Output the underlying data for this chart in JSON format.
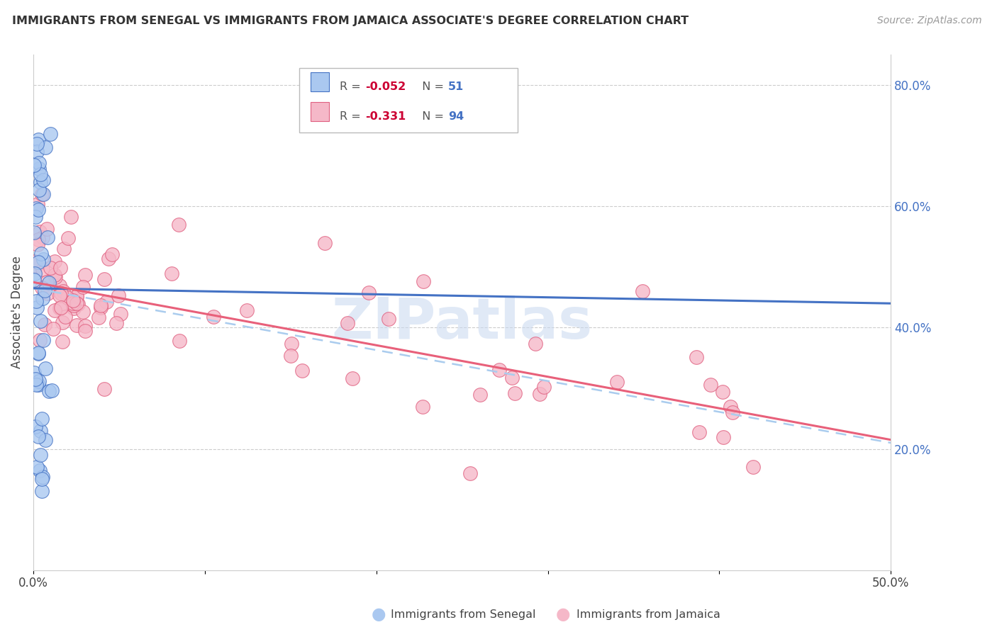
{
  "title": "IMMIGRANTS FROM SENEGAL VS IMMIGRANTS FROM JAMAICA ASSOCIATE'S DEGREE CORRELATION CHART",
  "source": "Source: ZipAtlas.com",
  "ylabel": "Associate's Degree",
  "right_ytick_labels": [
    "80.0%",
    "60.0%",
    "40.0%",
    "20.0%"
  ],
  "right_ytick_values": [
    0.8,
    0.6,
    0.4,
    0.2
  ],
  "xtick_positions": [
    0.0,
    0.1,
    0.2,
    0.3,
    0.4,
    0.5
  ],
  "xtick_labels": [
    "0.0%",
    "",
    "",
    "",
    "",
    "50.0%"
  ],
  "xlim": [
    0.0,
    0.5
  ],
  "ylim": [
    0.0,
    0.85
  ],
  "color_senegal_fill": "#aac8f0",
  "color_senegal_edge": "#4472c4",
  "color_jamaica_fill": "#f5b8c8",
  "color_jamaica_edge": "#e06080",
  "color_trendline_senegal": "#4472c4",
  "color_trendline_jamaica": "#e8607a",
  "color_trendline_dashed": "#aaccee",
  "color_grid": "#cccccc",
  "watermark_text": "ZIPatlas",
  "watermark_color": "#c8d8f0",
  "legend_items": [
    {
      "r": "-0.052",
      "n": "51",
      "fill": "#aac8f0",
      "edge": "#4472c4"
    },
    {
      "r": "-0.331",
      "n": "94",
      "fill": "#f5b8c8",
      "edge": "#e06080"
    }
  ],
  "bottom_legend": [
    {
      "label": "Immigrants from Senegal",
      "fill": "#aac8f0",
      "edge": "#4472c4"
    },
    {
      "label": "Immigrants from Jamaica",
      "fill": "#f5b8c8",
      "edge": "#e06080"
    }
  ],
  "sen_trend_x0": 0.0,
  "sen_trend_y0": 0.465,
  "sen_trend_x1": 0.5,
  "sen_trend_y1": 0.44,
  "jam_trend_x0": 0.0,
  "jam_trend_y0": 0.475,
  "jam_trend_x1": 0.5,
  "jam_trend_y1": 0.215,
  "dash_trend_x0": 0.0,
  "dash_trend_y0": 0.465,
  "dash_trend_x1": 0.5,
  "dash_trend_y1": 0.21
}
